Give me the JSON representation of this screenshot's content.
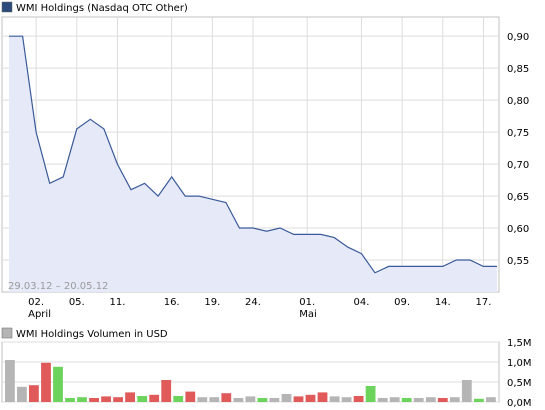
{
  "chart_data": [
    {
      "type": "area",
      "title": "WMI Holdings (Nasdaq OTC Other)",
      "date_range": "29.03.12 – 20.05.12",
      "x_ticks": [
        "02.",
        "05.",
        "11.",
        "16.",
        "19.",
        "24.",
        "01.",
        "04.",
        "09.",
        "14.",
        "17."
      ],
      "x_month_labels": [
        "April",
        "Mai"
      ],
      "y_ticks": [
        "0,55",
        "0,60",
        "0,65",
        "0,70",
        "0,75",
        "0,80",
        "0,85",
        "0,90"
      ],
      "ylim": [
        0.5,
        0.93
      ],
      "grid": true,
      "series": [
        {
          "name": "WMI Holdings",
          "x": [
            "29.03.12",
            "30.03.12",
            "02.04.12",
            "03.04.12",
            "04.04.12",
            "05.04.12",
            "06.04.12",
            "09.04.12",
            "10.04.12",
            "11.04.12",
            "12.04.12",
            "13.04.12",
            "16.04.12",
            "17.04.12",
            "18.04.12",
            "19.04.12",
            "20.04.12",
            "23.04.12",
            "24.04.12",
            "25.04.12",
            "26.04.12",
            "27.04.12",
            "30.04.12",
            "01.05.12",
            "02.05.12",
            "03.05.12",
            "04.05.12",
            "07.05.12",
            "08.05.12",
            "09.05.12",
            "10.05.12",
            "11.05.12",
            "14.05.12",
            "15.05.12",
            "16.05.12",
            "17.05.12",
            "18.05.12"
          ],
          "values": [
            0.9,
            0.9,
            0.75,
            0.67,
            0.68,
            0.755,
            0.77,
            0.755,
            0.7,
            0.66,
            0.67,
            0.65,
            0.68,
            0.65,
            0.65,
            0.645,
            0.64,
            0.6,
            0.6,
            0.595,
            0.6,
            0.59,
            0.59,
            0.59,
            0.585,
            0.57,
            0.56,
            0.53,
            0.54,
            0.54,
            0.54,
            0.54,
            0.54,
            0.55,
            0.55,
            0.54,
            0.54
          ]
        }
      ],
      "colors": {
        "line": "#3a5a98",
        "fill": "#e6eaf8",
        "grid": "#dddddd",
        "legend_swatch": "#2c4a7c"
      }
    },
    {
      "type": "bar",
      "title": "WMI Holdings Volumen in USD",
      "y_ticks": [
        "0,0M",
        "0,5M",
        "1,0M",
        "1,5M"
      ],
      "ylim": [
        0,
        1.5
      ],
      "unit": "M USD",
      "values": [
        1.05,
        0.38,
        0.42,
        0.98,
        0.88,
        0.1,
        0.12,
        0.1,
        0.14,
        0.12,
        0.24,
        0.15,
        0.18,
        0.55,
        0.15,
        0.26,
        0.12,
        0.12,
        0.22,
        0.1,
        0.14,
        0.1,
        0.1,
        0.2,
        0.14,
        0.18,
        0.24,
        0.14,
        0.12,
        0.15,
        0.4,
        0.1,
        0.12,
        0.1,
        0.1,
        0.12,
        0.1,
        0.12,
        0.55,
        0.08,
        0.12
      ],
      "bar_colors": [
        "gray",
        "gray",
        "red",
        "red",
        "green",
        "green",
        "green",
        "red",
        "red",
        "red",
        "red",
        "green",
        "red",
        "red",
        "green",
        "red",
        "gray",
        "gray",
        "red",
        "gray",
        "gray",
        "green",
        "gray",
        "gray",
        "red",
        "red",
        "red",
        "gray",
        "gray",
        "red",
        "green",
        "gray",
        "gray",
        "green",
        "gray",
        "gray",
        "red",
        "gray",
        "gray",
        "green",
        "gray"
      ],
      "colors": {
        "gray": "#b5b5b5",
        "red": "#e05a5a",
        "green": "#6cd45c",
        "legend_swatch": "#b5b5b5"
      }
    }
  ]
}
